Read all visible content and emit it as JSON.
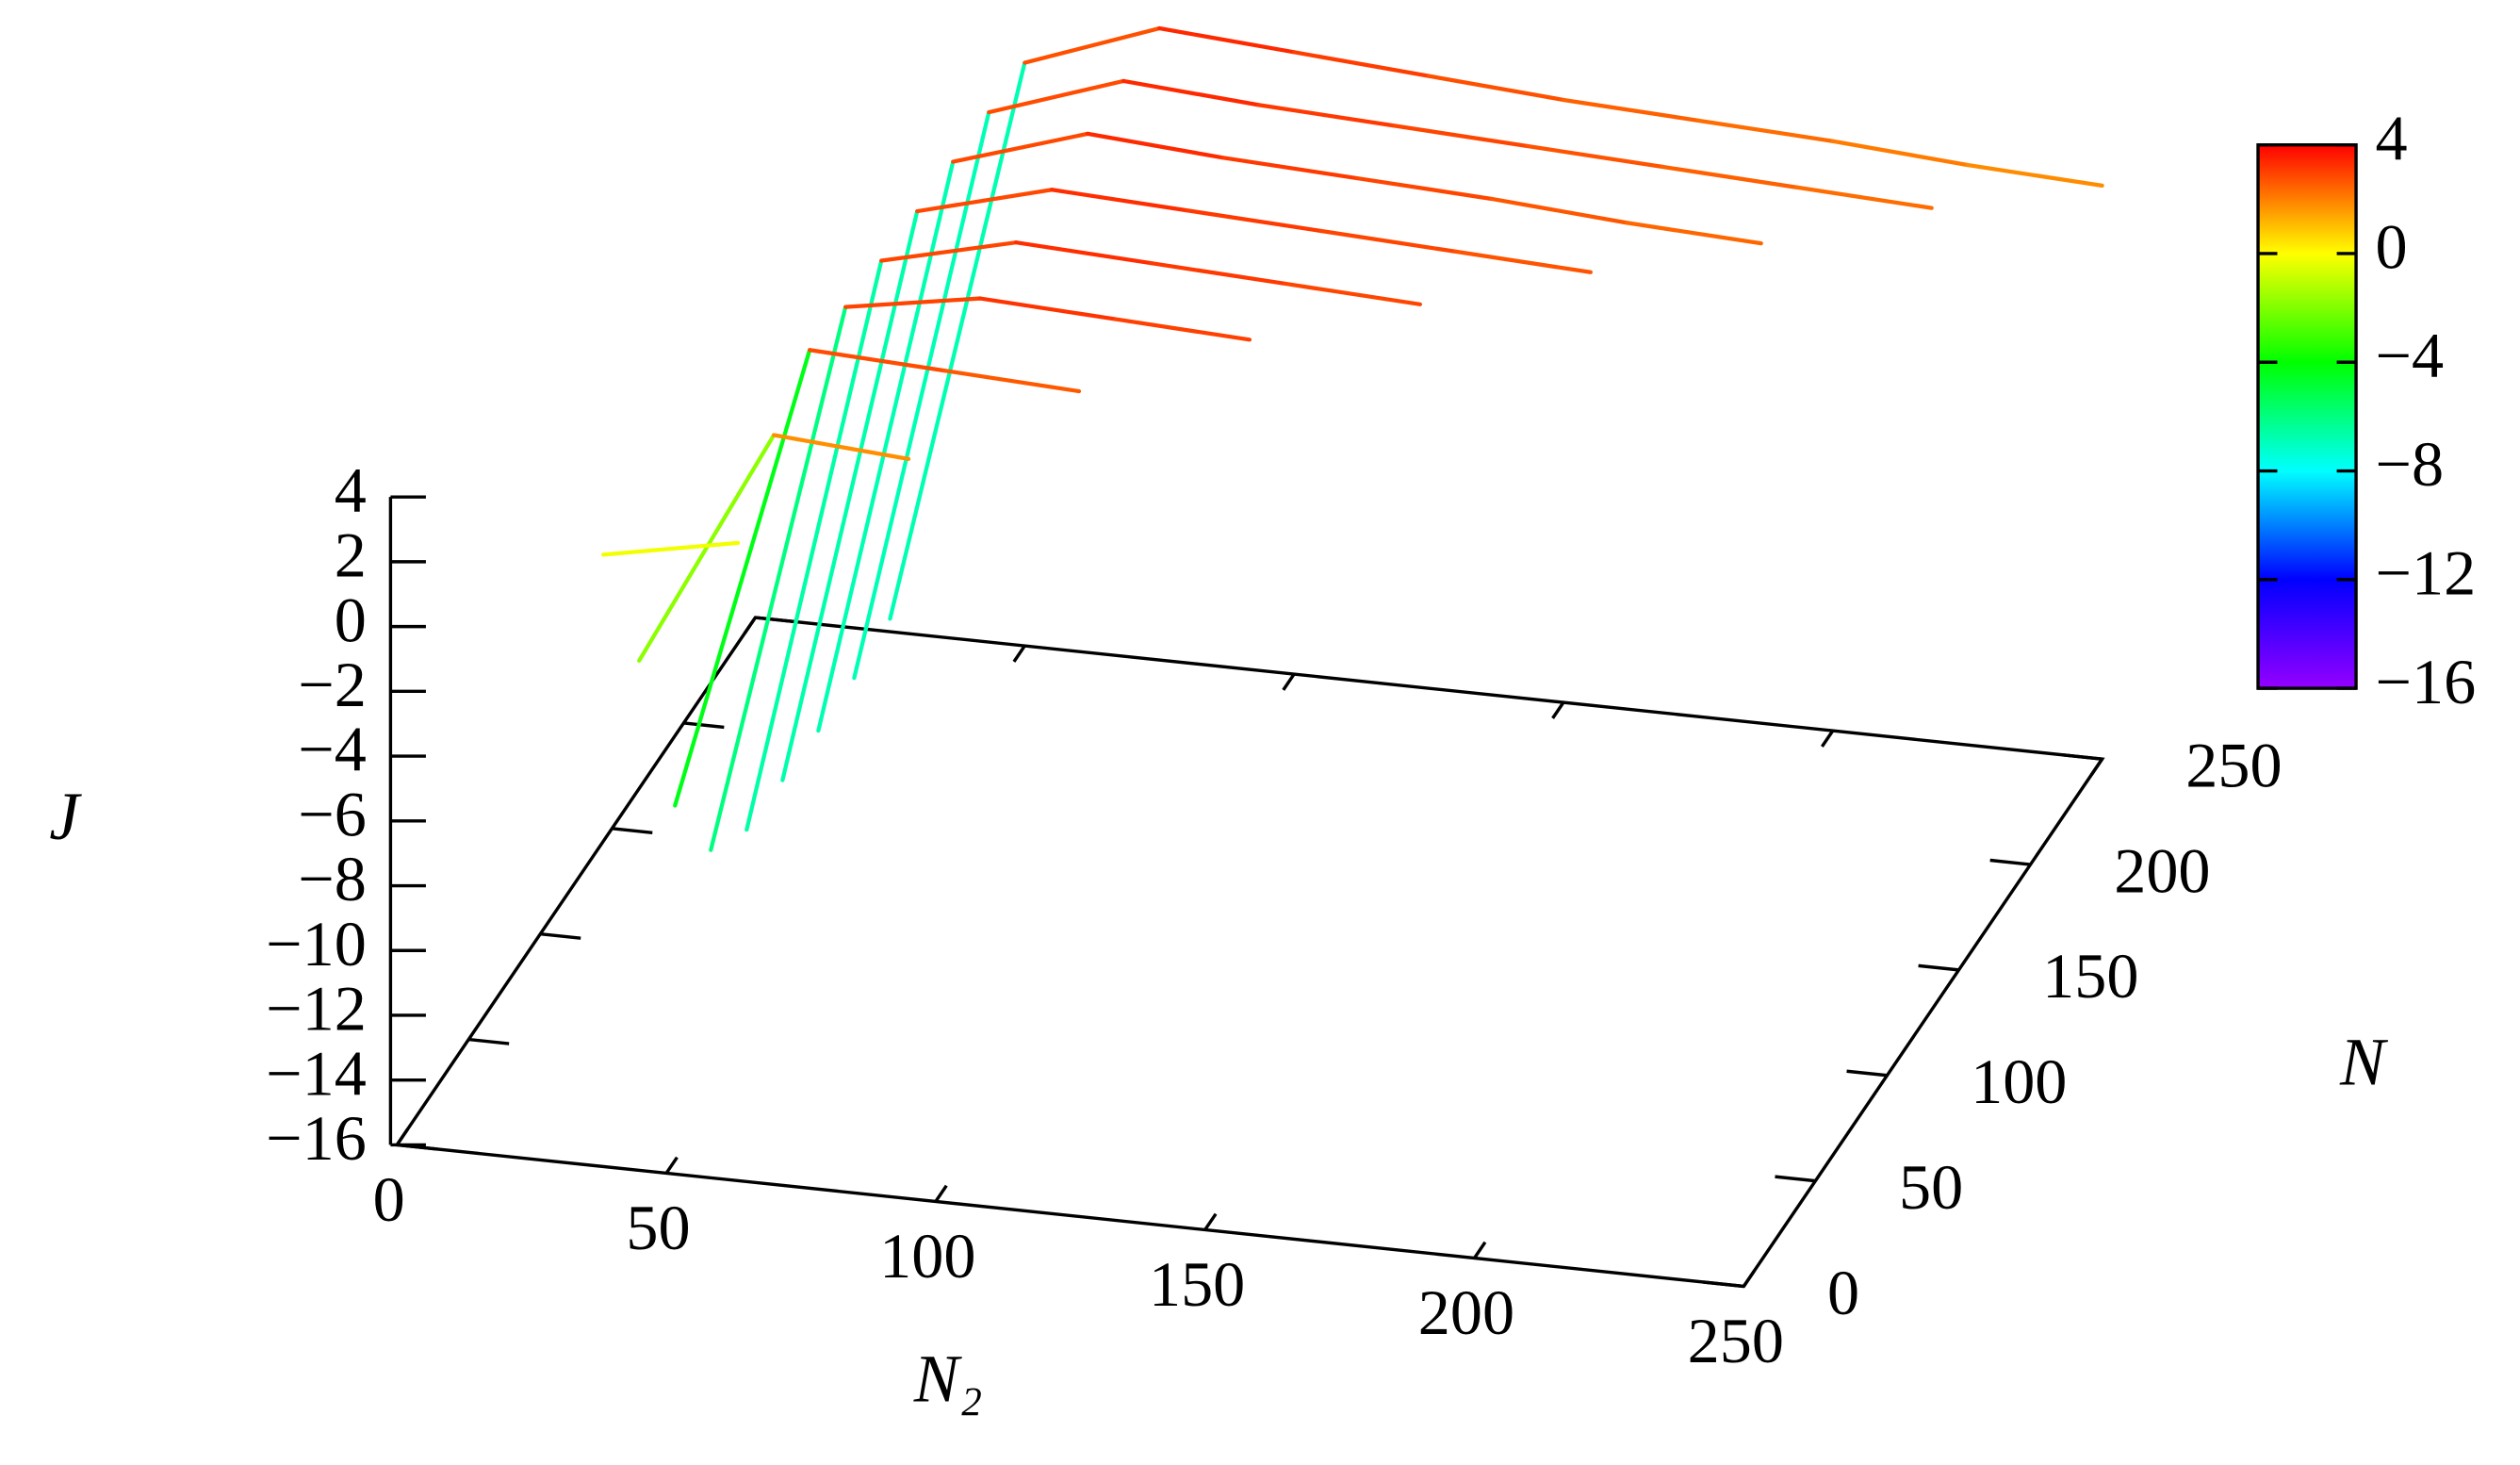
{
  "chart_data": {
    "type": "line3d",
    "xlabel": "N₂",
    "ylabel": "N",
    "zlabel": "J",
    "xlim": [
      0,
      250
    ],
    "ylim": [
      0,
      250
    ],
    "zlim": [
      -16,
      4
    ],
    "xticks": [
      0,
      50,
      100,
      150,
      200,
      250
    ],
    "yticks": [
      0,
      50,
      100,
      150,
      200,
      250
    ],
    "zticks": [
      4,
      2,
      0,
      {
        "value": -2,
        "label": "−2"
      },
      {
        "value": -4,
        "label": "−4"
      },
      {
        "value": -6,
        "label": "−6"
      },
      {
        "value": -8,
        "label": "−8"
      },
      {
        "value": -10,
        "label": "−10"
      },
      {
        "value": -12,
        "label": "−12"
      },
      {
        "value": -14,
        "label": "−14"
      },
      {
        "value": -16,
        "label": "−16"
      }
    ],
    "cblim": [
      -16,
      4
    ],
    "cbticks": [
      4,
      0,
      {
        "value": -4,
        "label": "−4"
      },
      {
        "value": -8,
        "label": "−8"
      },
      {
        "value": -12,
        "label": "−12"
      },
      {
        "value": -16,
        "label": "−16"
      }
    ],
    "colormap": [
      "#9400ff",
      "#0000ff",
      "#00ffff",
      "#00ff00",
      "#ffff00",
      "#ff0000"
    ],
    "series": [
      {
        "y": 250,
        "x": [
          25,
          50,
          75,
          100,
          125,
          150,
          175,
          200,
          225,
          250
        ],
        "values": [
          -15.6,
          2.0,
          3.5,
          3.2,
          2.9,
          2.6,
          2.4,
          2.2,
          1.9,
          1.7
        ]
      },
      {
        "y": 225,
        "x": [
          25,
          50,
          75,
          100,
          125,
          150,
          175,
          200,
          225
        ],
        "values": [
          -15.8,
          2.1,
          3.5,
          3.2,
          3.0,
          2.8,
          2.6,
          2.4,
          2.2
        ]
      },
      {
        "y": 200,
        "x": [
          25,
          50,
          75,
          100,
          125,
          150,
          175,
          200
        ],
        "values": [
          -15.8,
          2.2,
          3.5,
          3.2,
          3.0,
          2.8,
          2.5,
          2.3
        ]
      },
      {
        "y": 175,
        "x": [
          25,
          50,
          75,
          100,
          125,
          150,
          175
        ],
        "values": [
          -15.7,
          2.3,
          3.4,
          3.2,
          3.0,
          2.8,
          2.6
        ]
      },
      {
        "y": 150,
        "x": [
          25,
          50,
          75,
          100,
          125,
          150
        ],
        "values": [
          -15.6,
          2.4,
          3.4,
          3.2,
          3.0,
          2.8
        ]
      },
      {
        "y": 125,
        "x": [
          25,
          50,
          75,
          100,
          125
        ],
        "values": [
          -14.6,
          2.6,
          3.3,
          3.1,
          2.9
        ]
      },
      {
        "y": 100,
        "x": [
          25,
          50,
          75,
          100
        ],
        "values": [
          -11.6,
          2.9,
          2.7,
          2.5
        ]
      },
      {
        "y": 75,
        "x": [
          25,
          50,
          75
        ],
        "values": [
          -5.5,
          1.9,
          1.6
        ]
      },
      {
        "y": 50,
        "x": [
          25,
          50
        ],
        "values": [
          -0.6,
          0.2
        ]
      }
    ]
  }
}
